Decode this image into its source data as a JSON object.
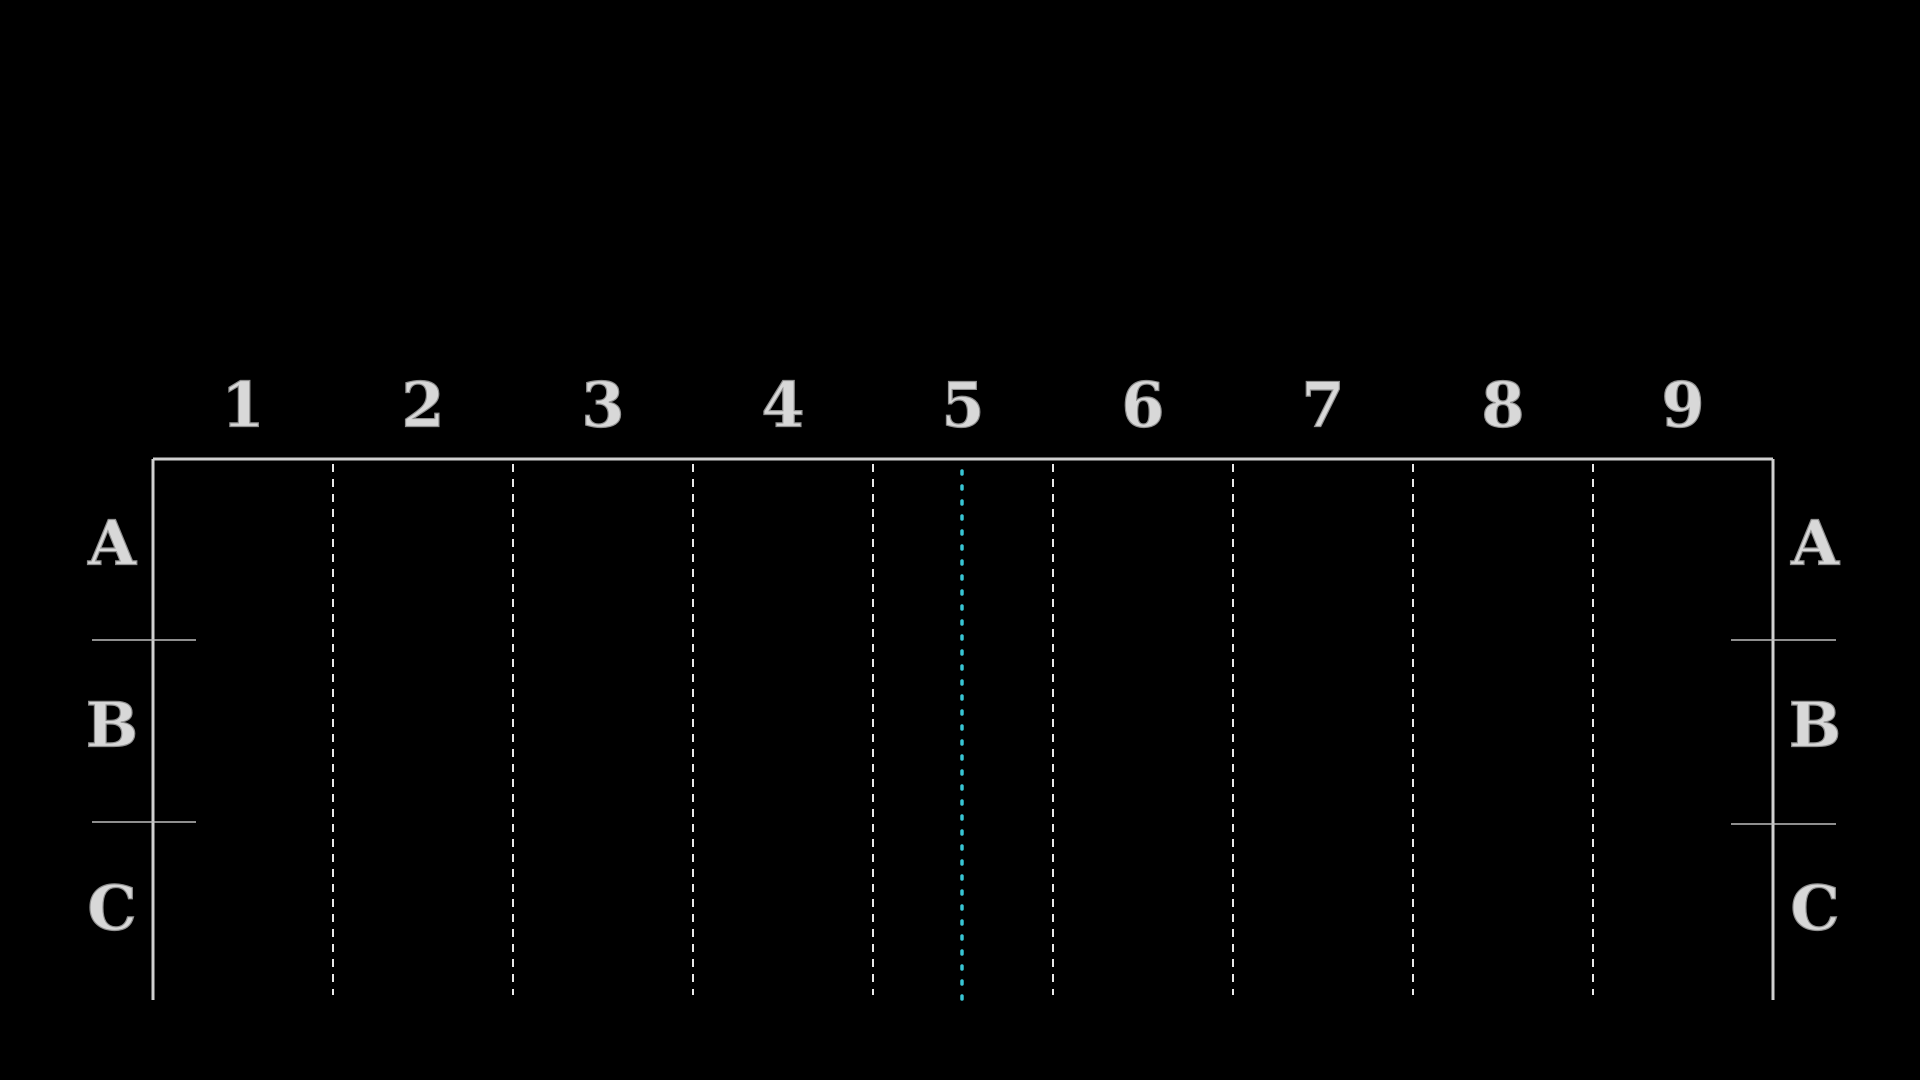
{
  "columns": [
    "1",
    "2",
    "3",
    "4",
    "5",
    "6",
    "7",
    "8",
    "9"
  ],
  "rows": [
    "A",
    "B",
    "C"
  ],
  "center_marker_column": "5",
  "colors": {
    "background": "#000000",
    "label": "#d8d8d8",
    "frame": "#d0d0d0",
    "divider": "#e8e8e8",
    "center_marker": "#39c6d6"
  }
}
